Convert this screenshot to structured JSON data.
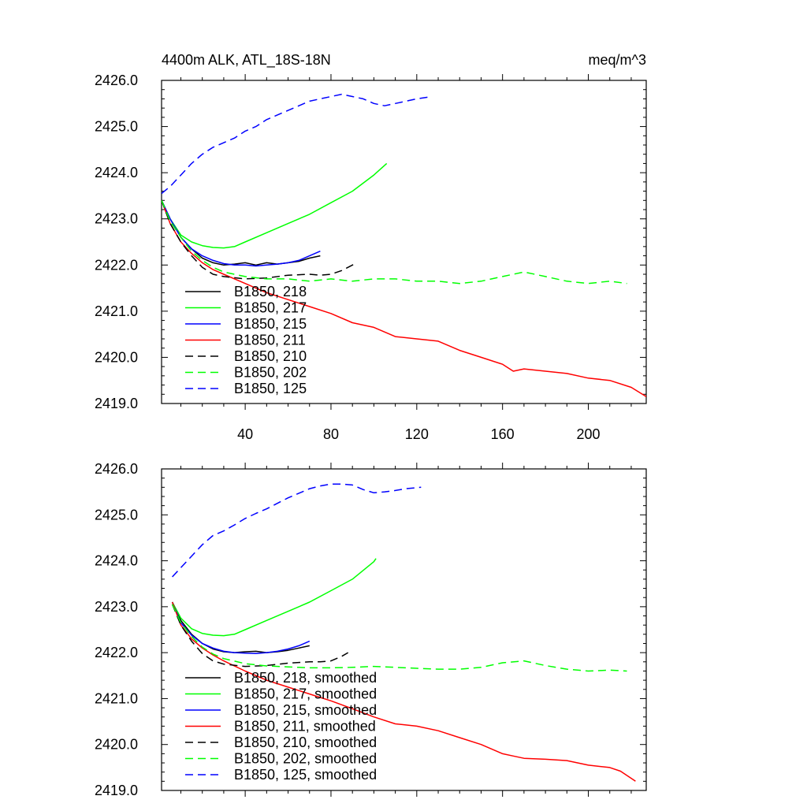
{
  "title_left": "4400m ALK, ATL_18S-18N",
  "title_right": "meq/m^3",
  "colors": {
    "black": "#000000",
    "green": "#00ff00",
    "blue": "#0000ff",
    "red": "#ff0000"
  },
  "chart_data": [
    {
      "type": "line",
      "panel": "top",
      "title": "4400m ALK, ATL_18S-18N",
      "units": "meq/m^3",
      "xlim": [
        1,
        227
      ],
      "ylim": [
        2419.0,
        2426.0
      ],
      "x_ticks": [
        40,
        80,
        120,
        160,
        200
      ],
      "x_tick_labels": [
        "40",
        "80",
        "120",
        "160",
        "200"
      ],
      "y_ticks": [
        2419.0,
        2420.0,
        2421.0,
        2422.0,
        2423.0,
        2424.0,
        2425.0,
        2426.0
      ],
      "y_tick_labels": [
        "2419.0",
        "2420.0",
        "2421.0",
        "2422.0",
        "2423.0",
        "2424.0",
        "2425.0",
        "2426.0"
      ],
      "legend": [
        "B1850, 218",
        "B1850, 217",
        "B1850, 215",
        "B1850, 211",
        "B1850, 210",
        "B1850, 202",
        "B1850, 125"
      ],
      "series": [
        {
          "name": "B1850, 218",
          "color": "#000000",
          "dash": "solid",
          "x": [
            1,
            5,
            10,
            15,
            20,
            25,
            30,
            35,
            40,
            45,
            50,
            55,
            60,
            65,
            70,
            75
          ],
          "y": [
            2423.4,
            2423.0,
            2422.6,
            2422.35,
            2422.15,
            2422.05,
            2422.0,
            2422.02,
            2422.05,
            2422.0,
            2422.05,
            2422.02,
            2422.05,
            2422.08,
            2422.15,
            2422.2
          ]
        },
        {
          "name": "B1850, 217",
          "color": "#00ff00",
          "dash": "solid",
          "x": [
            1,
            5,
            10,
            15,
            20,
            25,
            30,
            35,
            40,
            50,
            60,
            70,
            80,
            90,
            100,
            106
          ],
          "y": [
            2423.4,
            2423.0,
            2422.65,
            2422.5,
            2422.42,
            2422.38,
            2422.37,
            2422.4,
            2422.5,
            2422.7,
            2422.9,
            2423.1,
            2423.35,
            2423.6,
            2423.95,
            2424.2
          ]
        },
        {
          "name": "B1850, 215",
          "color": "#0000ff",
          "dash": "solid",
          "x": [
            1,
            5,
            10,
            15,
            20,
            25,
            30,
            35,
            40,
            45,
            50,
            55,
            60,
            65,
            70,
            75
          ],
          "y": [
            2423.4,
            2423.0,
            2422.6,
            2422.35,
            2422.2,
            2422.1,
            2422.03,
            2422.0,
            2422.0,
            2421.98,
            2422.0,
            2422.02,
            2422.05,
            2422.1,
            2422.2,
            2422.3
          ]
        },
        {
          "name": "B1850, 211",
          "color": "#ff0000",
          "dash": "solid",
          "x": [
            1,
            5,
            10,
            15,
            20,
            25,
            30,
            40,
            50,
            60,
            70,
            80,
            90,
            100,
            110,
            120,
            130,
            140,
            150,
            160,
            165,
            170,
            180,
            190,
            200,
            210,
            220,
            227
          ],
          "y": [
            2423.4,
            2422.9,
            2422.5,
            2422.25,
            2422.05,
            2421.9,
            2421.8,
            2421.6,
            2421.4,
            2421.25,
            2421.1,
            2420.95,
            2420.75,
            2420.65,
            2420.45,
            2420.4,
            2420.35,
            2420.15,
            2420.0,
            2419.85,
            2419.7,
            2419.75,
            2419.7,
            2419.65,
            2419.55,
            2419.5,
            2419.35,
            2419.15
          ]
        },
        {
          "name": "B1850, 210",
          "color": "#000000",
          "dash": "dashed",
          "x": [
            1,
            5,
            10,
            15,
            20,
            25,
            30,
            40,
            50,
            60,
            70,
            75,
            80,
            85,
            90,
            92
          ],
          "y": [
            2423.4,
            2422.9,
            2422.5,
            2422.2,
            2421.95,
            2421.8,
            2421.75,
            2421.7,
            2421.72,
            2421.78,
            2421.8,
            2421.78,
            2421.8,
            2421.88,
            2422.0,
            2422.05
          ]
        },
        {
          "name": "B1850, 202",
          "color": "#00ff00",
          "dash": "dashed",
          "x": [
            1,
            5,
            10,
            15,
            20,
            25,
            30,
            40,
            50,
            60,
            70,
            80,
            90,
            100,
            110,
            120,
            130,
            140,
            150,
            160,
            170,
            180,
            190,
            200,
            210,
            218
          ],
          "y": [
            2423.4,
            2422.95,
            2422.6,
            2422.3,
            2422.1,
            2421.95,
            2421.85,
            2421.75,
            2421.7,
            2421.7,
            2421.65,
            2421.7,
            2421.65,
            2421.7,
            2421.7,
            2421.65,
            2421.65,
            2421.6,
            2421.65,
            2421.75,
            2421.85,
            2421.75,
            2421.65,
            2421.6,
            2421.65,
            2421.6
          ]
        },
        {
          "name": "B1850, 125",
          "color": "#0000ff",
          "dash": "dashed",
          "x": [
            1,
            5,
            10,
            15,
            20,
            25,
            30,
            35,
            40,
            45,
            50,
            55,
            60,
            65,
            70,
            75,
            80,
            85,
            90,
            95,
            100,
            105,
            110,
            115,
            120,
            127
          ],
          "y": [
            2423.55,
            2423.7,
            2423.95,
            2424.2,
            2424.4,
            2424.55,
            2424.65,
            2424.75,
            2424.9,
            2425.0,
            2425.15,
            2425.25,
            2425.35,
            2425.45,
            2425.55,
            2425.6,
            2425.65,
            2425.7,
            2425.65,
            2425.6,
            2425.5,
            2425.45,
            2425.5,
            2425.55,
            2425.6,
            2425.65
          ]
        }
      ]
    },
    {
      "type": "line",
      "panel": "bottom",
      "xlim": [
        1,
        227
      ],
      "ylim": [
        2419.0,
        2426.0
      ],
      "y_ticks": [
        2419.0,
        2420.0,
        2421.0,
        2422.0,
        2423.0,
        2424.0,
        2425.0,
        2426.0
      ],
      "y_tick_labels": [
        "2419.0",
        "2420.0",
        "2421.0",
        "2422.0",
        "2423.0",
        "2424.0",
        "2425.0",
        "2426.0"
      ],
      "legend": [
        "B1850, 218, smoothed",
        "B1850, 217, smoothed",
        "B1850, 215, smoothed",
        "B1850, 211, smoothed",
        "B1850, 210, smoothed",
        "B1850, 202, smoothed",
        "B1850, 125, smoothed"
      ],
      "series": [
        {
          "name": "B1850, 218, smoothed",
          "color": "#000000",
          "dash": "solid",
          "x": [
            6,
            10,
            15,
            20,
            25,
            30,
            35,
            40,
            45,
            50,
            55,
            60,
            65,
            70
          ],
          "y": [
            2423.1,
            2422.7,
            2422.4,
            2422.2,
            2422.08,
            2422.02,
            2422.0,
            2422.02,
            2422.03,
            2422.0,
            2422.02,
            2422.05,
            2422.1,
            2422.15
          ]
        },
        {
          "name": "B1850, 217, smoothed",
          "color": "#00ff00",
          "dash": "solid",
          "x": [
            6,
            10,
            15,
            20,
            25,
            30,
            35,
            40,
            50,
            60,
            70,
            80,
            90,
            100,
            101
          ],
          "y": [
            2423.1,
            2422.75,
            2422.52,
            2422.42,
            2422.38,
            2422.37,
            2422.4,
            2422.5,
            2422.7,
            2422.9,
            2423.1,
            2423.35,
            2423.6,
            2423.98,
            2424.05
          ]
        },
        {
          "name": "B1850, 215, smoothed",
          "color": "#0000ff",
          "dash": "solid",
          "x": [
            6,
            10,
            15,
            20,
            25,
            30,
            35,
            40,
            45,
            50,
            55,
            60,
            65,
            70
          ],
          "y": [
            2423.1,
            2422.65,
            2422.38,
            2422.2,
            2422.1,
            2422.03,
            2422.0,
            2421.99,
            2421.98,
            2422.0,
            2422.03,
            2422.08,
            2422.15,
            2422.25
          ]
        },
        {
          "name": "B1850, 211, smoothed",
          "color": "#ff0000",
          "dash": "solid",
          "x": [
            6,
            10,
            15,
            20,
            25,
            30,
            40,
            50,
            60,
            70,
            80,
            90,
            100,
            110,
            120,
            130,
            140,
            150,
            160,
            165,
            170,
            180,
            190,
            200,
            210,
            215,
            222
          ],
          "y": [
            2423.1,
            2422.6,
            2422.3,
            2422.1,
            2421.95,
            2421.82,
            2421.6,
            2421.4,
            2421.25,
            2421.1,
            2420.95,
            2420.78,
            2420.6,
            2420.45,
            2420.4,
            2420.3,
            2420.15,
            2420.0,
            2419.8,
            2419.75,
            2419.7,
            2419.68,
            2419.65,
            2419.55,
            2419.5,
            2419.42,
            2419.2
          ]
        },
        {
          "name": "B1850, 210, smoothed",
          "color": "#000000",
          "dash": "dashed",
          "x": [
            6,
            10,
            15,
            20,
            25,
            30,
            40,
            50,
            60,
            70,
            75,
            80,
            85,
            88
          ],
          "y": [
            2423.05,
            2422.6,
            2422.25,
            2421.98,
            2421.82,
            2421.75,
            2421.7,
            2421.72,
            2421.77,
            2421.8,
            2421.8,
            2421.82,
            2421.92,
            2422.0
          ]
        },
        {
          "name": "B1850, 202, smoothed",
          "color": "#00ff00",
          "dash": "dashed",
          "x": [
            6,
            10,
            15,
            20,
            25,
            30,
            40,
            50,
            60,
            70,
            80,
            90,
            100,
            110,
            120,
            130,
            140,
            150,
            160,
            170,
            180,
            190,
            200,
            210,
            218
          ],
          "y": [
            2423.05,
            2422.65,
            2422.35,
            2422.12,
            2421.97,
            2421.87,
            2421.76,
            2421.71,
            2421.69,
            2421.67,
            2421.67,
            2421.68,
            2421.7,
            2421.68,
            2421.66,
            2421.64,
            2421.64,
            2421.68,
            2421.78,
            2421.82,
            2421.72,
            2421.64,
            2421.6,
            2421.62,
            2421.6
          ]
        },
        {
          "name": "B1850, 125, smoothed",
          "color": "#0000ff",
          "dash": "dashed",
          "x": [
            6,
            10,
            15,
            20,
            25,
            30,
            35,
            40,
            45,
            50,
            55,
            60,
            65,
            70,
            75,
            80,
            85,
            90,
            95,
            100,
            105,
            110,
            115,
            122
          ],
          "y": [
            2423.65,
            2423.85,
            2424.1,
            2424.35,
            2424.55,
            2424.65,
            2424.78,
            2424.92,
            2425.03,
            2425.13,
            2425.25,
            2425.37,
            2425.47,
            2425.57,
            2425.63,
            2425.67,
            2425.67,
            2425.65,
            2425.55,
            2425.48,
            2425.5,
            2425.53,
            2425.57,
            2425.6
          ]
        }
      ]
    }
  ]
}
